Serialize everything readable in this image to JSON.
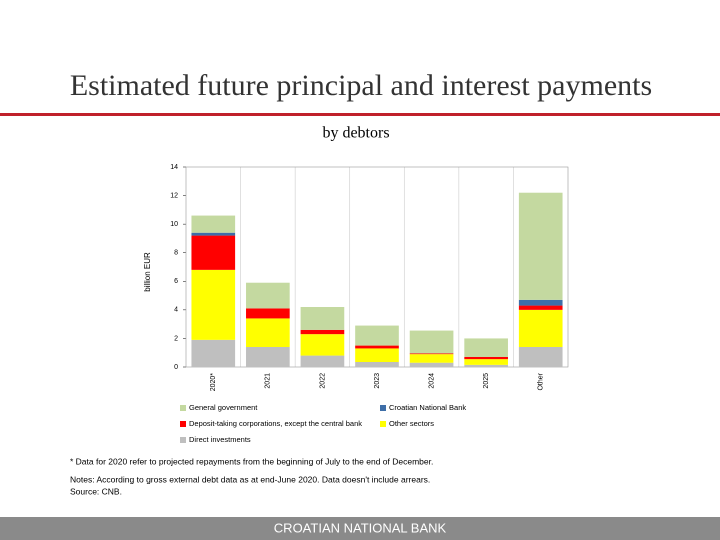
{
  "chart_data": {
    "type": "stacked-bar",
    "title": "Estimated future principal and interest payments",
    "subtitle": "by debtors",
    "y_label": "billion EUR",
    "categories": [
      "2020*",
      "2021",
      "2022",
      "2023",
      "2024",
      "2025",
      "Other"
    ],
    "series": [
      {
        "name": "General government",
        "color": "#c4d9a0",
        "values": [
          1.2,
          1.8,
          1.6,
          1.4,
          1.6,
          1.3,
          7.5
        ]
      },
      {
        "name": "Croatian National Bank",
        "color": "#3e6ea8",
        "values": [
          0.2,
          0,
          0,
          0,
          0,
          0,
          0.4
        ]
      },
      {
        "name": "Deposit-taking corporations, except the central bank",
        "color": "#ff0000",
        "values": [
          2.4,
          0.7,
          0.3,
          0.2,
          0.05,
          0.15,
          0.3
        ]
      },
      {
        "name": "Other sectors",
        "color": "#ffff00",
        "values": [
          4.9,
          2.0,
          1.5,
          0.95,
          0.6,
          0.4,
          2.6
        ]
      },
      {
        "name": "Direct investments",
        "color": "#bfbfbf",
        "values": [
          1.9,
          1.4,
          0.8,
          0.35,
          0.3,
          0.15,
          1.4
        ]
      }
    ],
    "ylim": [
      0,
      14
    ],
    "yticks": [
      0,
      2,
      4,
      6,
      8,
      10,
      12,
      14
    ],
    "grid": true
  },
  "footnotes": [
    "* Data for 2020  refer to projected repayments from the beginning of July to the end of December.",
    "Notes: According to gross external debt data as at end-June 2020. Data doesn't include arrears.",
    "Source: CNB."
  ],
  "footer": "CROATIAN NATIONAL BANK"
}
